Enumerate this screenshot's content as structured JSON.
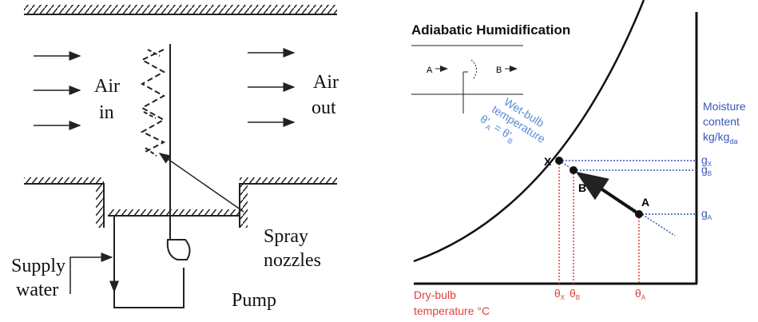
{
  "left": {
    "air_in": [
      "Air",
      "in"
    ],
    "air_out": [
      "Air",
      "out"
    ],
    "spray_nozzles": [
      "Spray",
      "nozzles"
    ],
    "supply_water": [
      "Supply",
      "water"
    ],
    "pump": "Pump"
  },
  "right": {
    "title": "Adiabatic Humidification",
    "inset": {
      "a": "A",
      "b": "B"
    },
    "wet_bulb": [
      "Wet-bulb",
      "temperature"
    ],
    "wet_bulb_eq": {
      "t1": "θ'",
      "s1": "A",
      "mid": " = θ'",
      "s2": "B"
    },
    "points": {
      "x": "X",
      "b": "B",
      "a": "A"
    },
    "moisture": [
      "Moisture",
      "content",
      {
        "main": "kg/kg",
        "sub": "da"
      }
    ],
    "g_labels": [
      {
        "main": "g",
        "sub": "X"
      },
      {
        "main": "g",
        "sub": "B"
      },
      {
        "main": "g",
        "sub": "A"
      }
    ],
    "dry_bulb": [
      "Dry-bulb",
      "temperature °C"
    ],
    "theta_labels": [
      {
        "main": "θ",
        "sub": "X"
      },
      {
        "main": "θ",
        "sub": "B"
      },
      {
        "main": "θ",
        "sub": "A"
      }
    ]
  }
}
